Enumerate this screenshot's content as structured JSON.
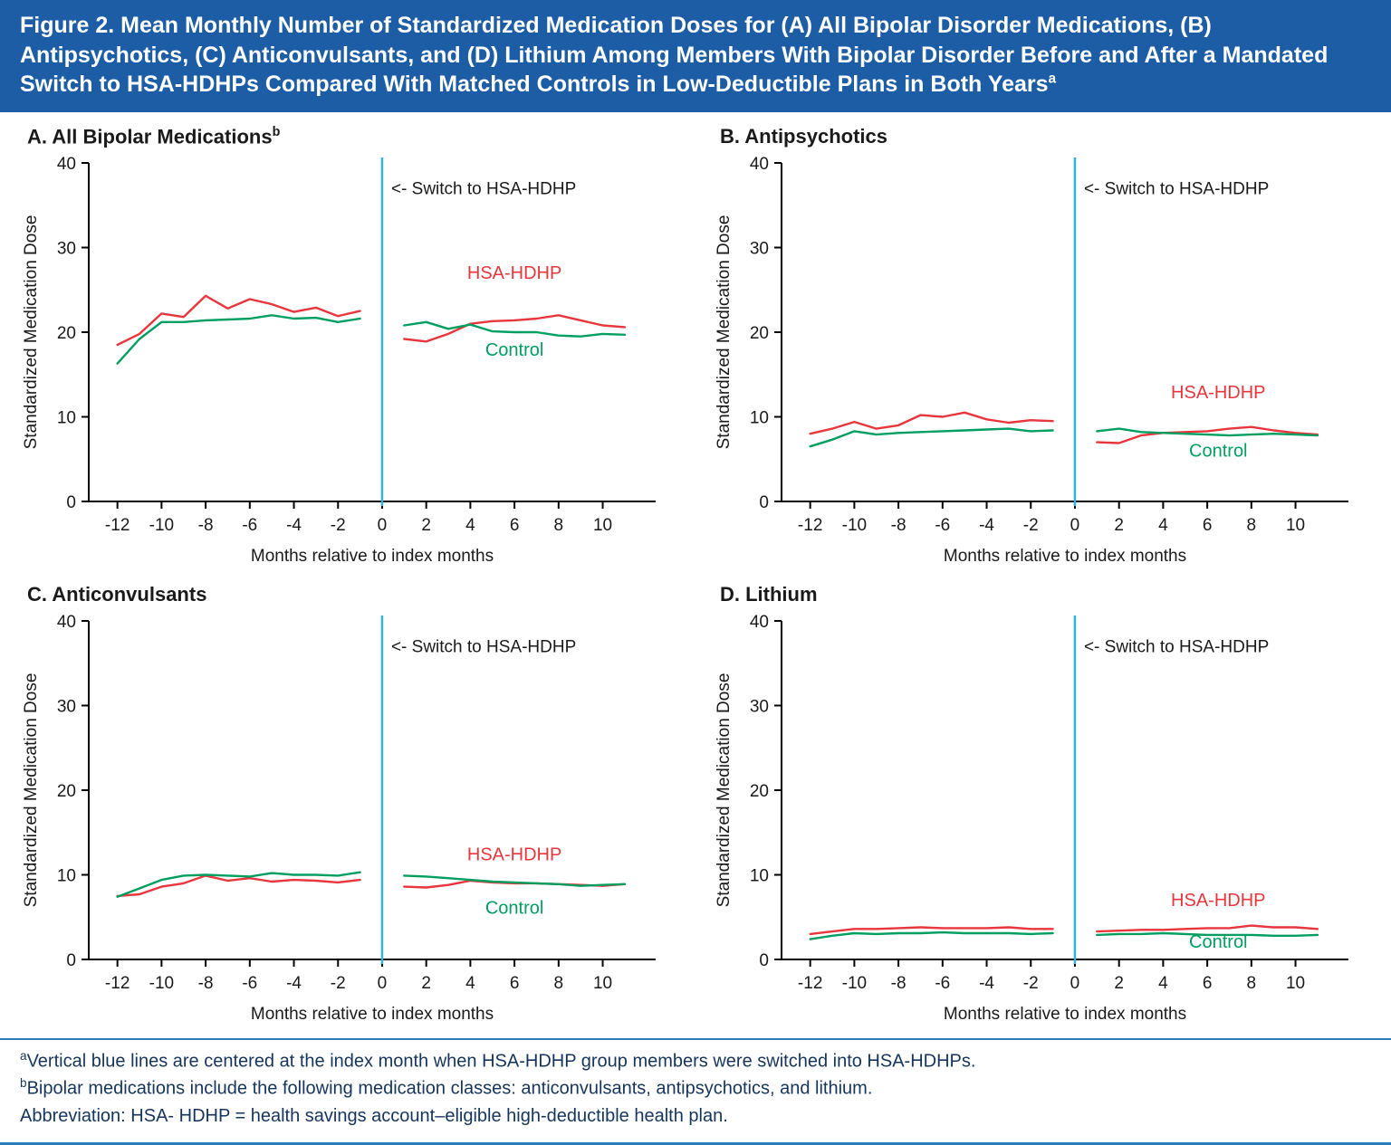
{
  "figure": {
    "title": "Figure 2. Mean Monthly Number of Standardized Medication Doses for (A) All Bipolar Disorder Medications, (B) Antipsychotics, (C) Anticonvulsants, and (D) Lithium Among Members With Bipolar Disorder Before and After a Mandated Switch to HSA-HDHPs Compared With Matched Controls in Low-Deductible Plans in Both Years",
    "title_sup": "a"
  },
  "colors": {
    "header_bg": "#1c5da5",
    "hsa_hdhp": "#e8363d",
    "control": "#009e60",
    "switch_line": "#2fb3e3",
    "rule_line": "#2b7cb9",
    "footnote_text": "#16355c"
  },
  "footnotes": {
    "a_sup": "a",
    "a_text": "Vertical blue lines are centered at the index month when HSA-HDHP group members were switched into HSA-HDHPs.",
    "b_sup": "b",
    "b_text": "Bipolar medications include the following medication classes: anticonvulsants, antipsychotics, and lithium.",
    "abbrev": "Abbreviation: HSA- HDHP = health savings account–eligible high-deductible health plan."
  },
  "chart_data": [
    {
      "panel": "A",
      "type": "line",
      "title": "A. All Bipolar Medications",
      "title_sup": "b",
      "ylabel": "Standardized Medication Dose",
      "xlabel": "Months relative to index months",
      "ylim": [
        0,
        40
      ],
      "yticks": [
        0,
        10,
        20,
        30,
        40
      ],
      "xticks": [
        -12,
        -10,
        -8,
        -6,
        -4,
        -2,
        0,
        2,
        4,
        6,
        8,
        10
      ],
      "switch_line_x": 0,
      "annotation": "<- Switch to HSA-HDHP",
      "x_pre": [
        -12,
        -11,
        -10,
        -9,
        -8,
        -7,
        -6,
        -5,
        -4,
        -3,
        -2,
        -1
      ],
      "x_post": [
        1,
        2,
        3,
        4,
        5,
        6,
        7,
        8,
        9,
        10,
        11
      ],
      "series": [
        {
          "name": "HSA-HDHP",
          "color": "#e8363d",
          "pre": [
            18.5,
            19.8,
            22.2,
            21.8,
            24.3,
            22.8,
            23.9,
            23.3,
            22.4,
            22.9,
            21.9,
            22.5
          ],
          "post": [
            19.2,
            18.9,
            19.8,
            21.0,
            21.3,
            21.4,
            21.6,
            22.0,
            21.4,
            20.8,
            20.6
          ],
          "label_x": 6,
          "label_y": 26.3
        },
        {
          "name": "Control",
          "color": "#009e60",
          "pre": [
            16.3,
            19.2,
            21.2,
            21.2,
            21.4,
            21.5,
            21.6,
            22.0,
            21.6,
            21.7,
            21.2,
            21.6
          ],
          "post": [
            20.8,
            21.2,
            20.4,
            20.9,
            20.1,
            20.0,
            20.0,
            19.6,
            19.5,
            19.8,
            19.7
          ],
          "label_x": 6,
          "label_y": 17.2
        }
      ]
    },
    {
      "panel": "B",
      "type": "line",
      "title": "B. Antipsychotics",
      "ylabel": "Standardized Medication Dose",
      "xlabel": "Months relative to index months",
      "ylim": [
        0,
        40
      ],
      "yticks": [
        0,
        10,
        20,
        30,
        40
      ],
      "xticks": [
        -12,
        -10,
        -8,
        -6,
        -4,
        -2,
        0,
        2,
        4,
        6,
        8,
        10
      ],
      "switch_line_x": 0,
      "annotation": "<- Switch to HSA-HDHP",
      "x_pre": [
        -12,
        -11,
        -10,
        -9,
        -8,
        -7,
        -6,
        -5,
        -4,
        -3,
        -2,
        -1
      ],
      "x_post": [
        1,
        2,
        3,
        4,
        5,
        6,
        7,
        8,
        9,
        10,
        11
      ],
      "series": [
        {
          "name": "HSA-HDHP",
          "color": "#e8363d",
          "pre": [
            8.0,
            8.6,
            9.4,
            8.6,
            9.0,
            10.2,
            10.0,
            10.5,
            9.7,
            9.3,
            9.6,
            9.5
          ],
          "post": [
            7.0,
            6.9,
            7.8,
            8.1,
            8.2,
            8.3,
            8.6,
            8.8,
            8.4,
            8.1,
            7.9
          ],
          "label_x": 6.5,
          "label_y": 12.2
        },
        {
          "name": "Control",
          "color": "#009e60",
          "pre": [
            6.5,
            7.3,
            8.3,
            7.9,
            8.1,
            8.2,
            8.3,
            8.4,
            8.5,
            8.6,
            8.3,
            8.4
          ],
          "post": [
            8.3,
            8.6,
            8.2,
            8.1,
            8.0,
            7.9,
            7.8,
            7.9,
            8.0,
            7.9,
            7.8
          ],
          "label_x": 6.5,
          "label_y": 5.3
        }
      ]
    },
    {
      "panel": "C",
      "type": "line",
      "title": "C. Anticonvulsants",
      "ylabel": "Standardized Medication Dose",
      "xlabel": "Months relative to index months",
      "ylim": [
        0,
        40
      ],
      "yticks": [
        0,
        10,
        20,
        30,
        40
      ],
      "xticks": [
        -12,
        -10,
        -8,
        -6,
        -4,
        -2,
        0,
        2,
        4,
        6,
        8,
        10
      ],
      "switch_line_x": 0,
      "annotation": "<- Switch to HSA-HDHP",
      "x_pre": [
        -12,
        -11,
        -10,
        -9,
        -8,
        -7,
        -6,
        -5,
        -4,
        -3,
        -2,
        -1
      ],
      "x_post": [
        1,
        2,
        3,
        4,
        5,
        6,
        7,
        8,
        9,
        10,
        11
      ],
      "series": [
        {
          "name": "HSA-HDHP",
          "color": "#e8363d",
          "pre": [
            7.5,
            7.7,
            8.6,
            9.0,
            9.9,
            9.3,
            9.6,
            9.2,
            9.4,
            9.3,
            9.1,
            9.4
          ],
          "post": [
            8.6,
            8.5,
            8.8,
            9.3,
            9.1,
            9.0,
            9.0,
            8.9,
            8.8,
            8.7,
            8.9
          ],
          "label_x": 6,
          "label_y": 11.7
        },
        {
          "name": "Control",
          "color": "#009e60",
          "pre": [
            7.4,
            8.4,
            9.4,
            9.9,
            10.0,
            9.9,
            9.8,
            10.2,
            10.0,
            10.0,
            9.9,
            10.3
          ],
          "post": [
            9.9,
            9.8,
            9.6,
            9.4,
            9.2,
            9.1,
            9.0,
            8.9,
            8.7,
            8.8,
            8.9
          ],
          "label_x": 6,
          "label_y": 5.4
        }
      ]
    },
    {
      "panel": "D",
      "type": "line",
      "title": "D. Lithium",
      "ylabel": "Standardized Medication Dose",
      "xlabel": "Months relative to index months",
      "ylim": [
        0,
        40
      ],
      "yticks": [
        0,
        10,
        20,
        30,
        40
      ],
      "xticks": [
        -12,
        -10,
        -8,
        -6,
        -4,
        -2,
        0,
        2,
        4,
        6,
        8,
        10
      ],
      "switch_line_x": 0,
      "annotation": "<- Switch to HSA-HDHP",
      "x_pre": [
        -12,
        -11,
        -10,
        -9,
        -8,
        -7,
        -6,
        -5,
        -4,
        -3,
        -2,
        -1
      ],
      "x_post": [
        1,
        2,
        3,
        4,
        5,
        6,
        7,
        8,
        9,
        10,
        11
      ],
      "series": [
        {
          "name": "HSA-HDHP",
          "color": "#e8363d",
          "pre": [
            3.0,
            3.3,
            3.6,
            3.6,
            3.7,
            3.8,
            3.7,
            3.7,
            3.7,
            3.8,
            3.6,
            3.6
          ],
          "post": [
            3.3,
            3.4,
            3.5,
            3.5,
            3.6,
            3.7,
            3.7,
            4.0,
            3.8,
            3.8,
            3.6
          ],
          "label_x": 6.5,
          "label_y": 6.3
        },
        {
          "name": "Control",
          "color": "#009e60",
          "pre": [
            2.4,
            2.8,
            3.1,
            3.0,
            3.1,
            3.1,
            3.2,
            3.1,
            3.1,
            3.1,
            3.0,
            3.1
          ],
          "post": [
            2.9,
            3.0,
            3.0,
            3.1,
            3.0,
            2.9,
            2.9,
            2.9,
            2.8,
            2.8,
            2.9
          ],
          "label_x": 6.5,
          "label_y": 1.4
        }
      ]
    }
  ]
}
